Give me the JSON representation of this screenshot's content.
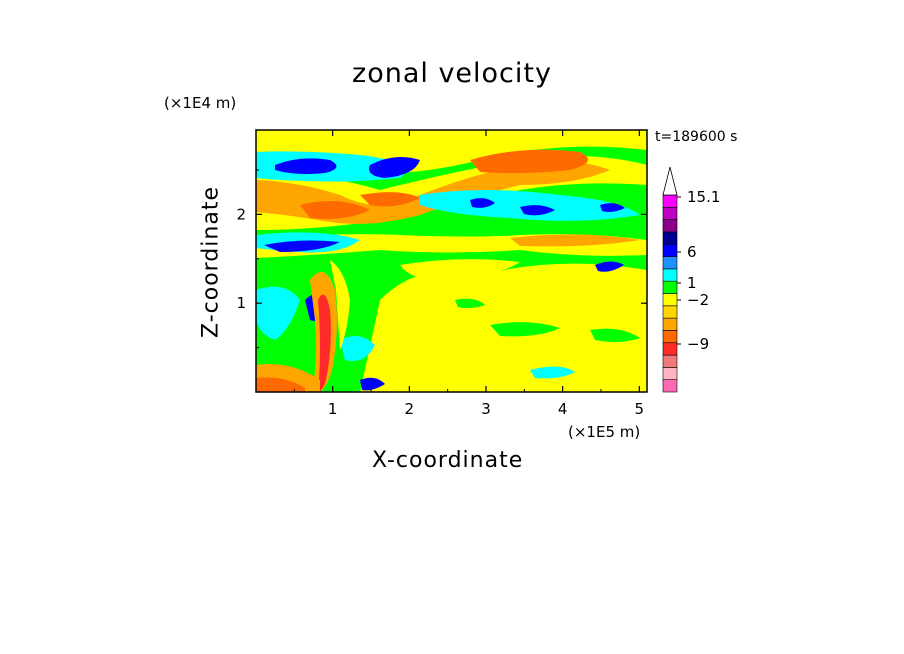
{
  "chart_data": {
    "type": "heatmap",
    "title": "zonal velocity",
    "xlabel": "X-coordinate",
    "ylabel": "Z-coordinate",
    "x_unit": "(×1E5 m)",
    "y_unit": "(×1E4 m)",
    "time_label": "t=189600 s",
    "xlim": [
      0,
      5.1
    ],
    "ylim": [
      0,
      2.95
    ],
    "x_ticks": [
      "1",
      "2",
      "3",
      "4",
      "5"
    ],
    "y_ticks": [
      "1",
      "2"
    ],
    "colorbar": {
      "labels": [
        "15.1",
        "6",
        "1",
        "−2",
        "−9"
      ],
      "levels": [
        15.1,
        6,
        1,
        -2,
        -9
      ],
      "colors": [
        "#ff69b4",
        "#ffb6c1",
        "#f07878",
        "#ff2a2a",
        "#ff6a00",
        "#ffa500",
        "#ffd700",
        "#ffff00",
        "#00ff00",
        "#00ffff",
        "#1e90ff",
        "#0000ff",
        "#000090",
        "#8a008a",
        "#c000c0",
        "#ff00ff"
      ]
    },
    "features": [
      {
        "kind": "positive-band",
        "x_range": [
          0,
          5
        ],
        "z": 2.25,
        "color": "#ffa500"
      },
      {
        "kind": "positive-core",
        "x_range": [
          3,
          4.2
        ],
        "z": 2.6,
        "color": "#ff6a00"
      },
      {
        "kind": "negative-band",
        "x_range": [
          0,
          2.2
        ],
        "z": 2.6,
        "color": "#0000ff"
      },
      {
        "kind": "negative-band",
        "x_range": [
          0,
          1.4
        ],
        "z": 1.65,
        "color": "#0000ff"
      },
      {
        "kind": "wave-zone",
        "x_range": [
          0.6,
          1.3
        ],
        "z_range": [
          0,
          1.4
        ],
        "color": "#ff2a2a"
      },
      {
        "kind": "background",
        "x_range": [
          1.5,
          5.1
        ],
        "z_range": [
          0,
          1.5
        ],
        "color": "#ffff00"
      }
    ]
  }
}
